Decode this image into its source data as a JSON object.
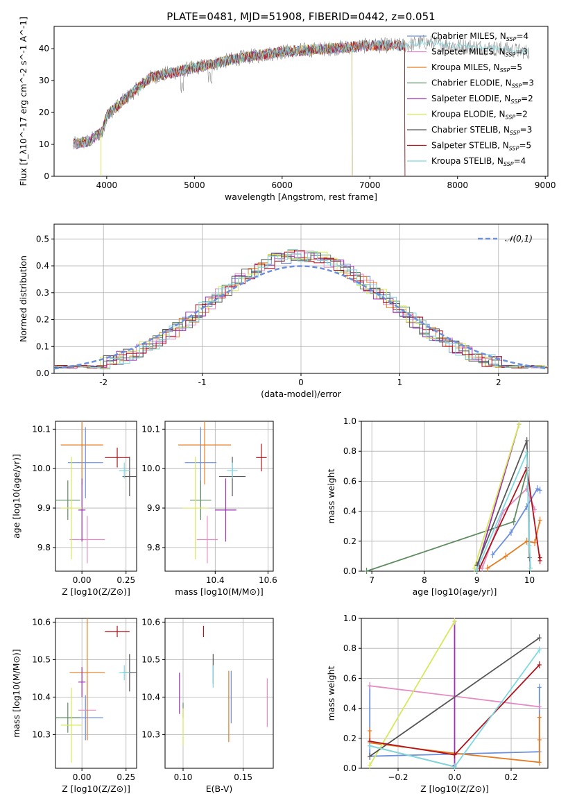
{
  "title": "PLATE=0481, MJD=51908, FIBERID=0442, z=0.051",
  "colors": {
    "Chabrier MILES": "#6b8fdd",
    "Salpeter MILES": "#e48bc3",
    "Kroupa MILES": "#e57b21",
    "Chabrier ELODIE": "#5e8c60",
    "Salpeter ELODIE": "#9c2fb2",
    "Kroupa ELODIE": "#d7e85a",
    "Chabrier STELIB": "#555555",
    "Salpeter STELIB": "#b0121b",
    "Kroupa STELIB": "#7fd8e0"
  },
  "chart_data": [
    {
      "id": "spectrum",
      "type": "line",
      "xlabel": "wavelength [Angstrom, rest frame]",
      "ylabel": "Flux [f_λ10^-17 erg cm^-2 s^-1 A^-1]",
      "xlim": [
        3400,
        9030
      ],
      "ylim": [
        0,
        47
      ],
      "xticks": [
        4000,
        5000,
        6000,
        7000,
        8000,
        9000
      ],
      "yticks": [
        0,
        10,
        20,
        30,
        40
      ],
      "grid": false,
      "legend": "upper right",
      "model_end": 7400,
      "continuum": [
        [
          3620,
          10
        ],
        [
          3800,
          11
        ],
        [
          3950,
          14
        ],
        [
          4000,
          19
        ],
        [
          4200,
          24
        ],
        [
          4500,
          31
        ],
        [
          5000,
          34
        ],
        [
          5500,
          37
        ],
        [
          6000,
          39
        ],
        [
          6500,
          40
        ],
        [
          7000,
          41
        ],
        [
          7400,
          41
        ],
        [
          7600,
          42
        ],
        [
          8000,
          41
        ],
        [
          8500,
          40
        ],
        [
          8800,
          39
        ]
      ],
      "series": [
        {
          "name": "Chabrier MILES, N_SSP=4",
          "label_main": "Chabrier MILES, N",
          "label_sub": "SSP",
          "label_tail": "=4"
        },
        {
          "name": "Salpeter MILES, N_SSP=3",
          "label_main": "Salpeter MILES, N",
          "label_sub": "SSP",
          "label_tail": "=3"
        },
        {
          "name": "Kroupa MILES, N_SSP=5",
          "label_main": "Kroupa MILES, N",
          "label_sub": "SSP",
          "label_tail": "=5"
        },
        {
          "name": "Chabrier ELODIE, N_SSP=3",
          "label_main": "Chabrier ELODIE, N",
          "label_sub": "SSP",
          "label_tail": "=3"
        },
        {
          "name": "Salpeter ELODIE, N_SSP=2",
          "label_main": "Salpeter ELODIE, N",
          "label_sub": "SSP",
          "label_tail": "=2"
        },
        {
          "name": "Kroupa ELODIE, N_SSP=2",
          "label_main": "Kroupa ELODIE, N",
          "label_sub": "SSP",
          "label_tail": "=2"
        },
        {
          "name": "Chabrier STELIB, N_SSP=3",
          "label_main": "Chabrier STELIB, N",
          "label_sub": "SSP",
          "label_tail": "=3"
        },
        {
          "name": "Salpeter STELIB, N_SSP=5",
          "label_main": "Salpeter STELIB, N",
          "label_sub": "SSP",
          "label_tail": "=5"
        },
        {
          "name": "Kroupa STELIB, N_SSP=4",
          "label_main": "Kroupa STELIB, N",
          "label_sub": "SSP",
          "label_tail": "=4"
        }
      ]
    },
    {
      "id": "residuals",
      "type": "line",
      "xlabel": "(data-model)/error",
      "ylabel": "Normed distribution",
      "xlim": [
        -2.5,
        2.5
      ],
      "ylim": [
        0,
        0.555
      ],
      "xticks": [
        -2,
        -1,
        0,
        1,
        2
      ],
      "yticks": [
        0.0,
        0.1,
        0.2,
        0.3,
        0.4,
        0.5
      ],
      "grid": true,
      "legend": "upper right",
      "gaussian_label": "𝒩(0,1)",
      "bin_width": 0.1
    },
    {
      "id": "age_vs_Z",
      "type": "scatter",
      "xlabel": "Z [log10(Z/Z⊙)]",
      "ylabel": "age [log10(age/yr)]",
      "xlim": [
        -0.15,
        0.31
      ],
      "ylim": [
        9.74,
        10.12
      ],
      "xticks": [
        0.0,
        0.25
      ],
      "xticklabels": [
        "0.00",
        "0.25"
      ],
      "yticks": [
        9.8,
        9.9,
        10.0,
        10.1
      ],
      "grid": true,
      "points": [
        {
          "model": "Chabrier MILES",
          "x": 0.02,
          "y": 10.015,
          "ex": 0.1,
          "ey": 0.09
        },
        {
          "model": "Salpeter MILES",
          "x": 0.03,
          "y": 9.82,
          "ex": 0.1,
          "ey": 0.06
        },
        {
          "model": "Kroupa MILES",
          "x": 0.0,
          "y": 10.06,
          "ex": 0.12,
          "ey": 0.1
        },
        {
          "model": "Chabrier ELODIE",
          "x": -0.08,
          "y": 9.92,
          "ex": 0.07,
          "ey": 0.05
        },
        {
          "model": "Salpeter ELODIE",
          "x": 0.0,
          "y": 9.895,
          "ex": 0.02,
          "ey": 0.08
        },
        {
          "model": "Kroupa ELODIE",
          "x": -0.06,
          "y": 9.9,
          "ex": 0.06,
          "ey": 0.13
        },
        {
          "model": "Chabrier STELIB",
          "x": 0.27,
          "y": 9.98,
          "ex": 0.04,
          "ey": 0.05
        },
        {
          "model": "Salpeter STELIB",
          "x": 0.2,
          "y": 10.028,
          "ex": 0.07,
          "ey": 0.025
        },
        {
          "model": "Kroupa STELIB",
          "x": 0.24,
          "y": 9.995,
          "ex": 0.03,
          "ey": 0.02
        }
      ]
    },
    {
      "id": "age_vs_mass",
      "type": "scatter",
      "xlabel": "mass [log10(M/M⊙)]",
      "ylabel": "",
      "xlim": [
        10.21,
        10.62
      ],
      "ylim": [
        9.74,
        10.12
      ],
      "xticks": [
        10.4,
        10.6
      ],
      "xticklabels": [
        "10.4",
        "10.6"
      ],
      "yticks": [
        9.8,
        9.9,
        10.0,
        10.1
      ],
      "grid": true,
      "points": [
        {
          "model": "Chabrier MILES",
          "x": 10.345,
          "y": 10.015,
          "ex": 0.06,
          "ey": 0.09
        },
        {
          "model": "Salpeter MILES",
          "x": 10.37,
          "y": 9.82,
          "ex": 0.04,
          "ey": 0.06
        },
        {
          "model": "Kroupa MILES",
          "x": 10.36,
          "y": 10.06,
          "ex": 0.1,
          "ey": 0.1
        },
        {
          "model": "Chabrier ELODIE",
          "x": 10.345,
          "y": 9.92,
          "ex": 0.04,
          "ey": 0.05
        },
        {
          "model": "Salpeter ELODIE",
          "x": 10.44,
          "y": 9.895,
          "ex": 0.04,
          "ey": 0.08
        },
        {
          "model": "Kroupa ELODIE",
          "x": 10.325,
          "y": 9.9,
          "ex": 0.05,
          "ey": 0.13
        },
        {
          "model": "Chabrier STELIB",
          "x": 10.465,
          "y": 9.98,
          "ex": 0.05,
          "ey": 0.05
        },
        {
          "model": "Salpeter STELIB",
          "x": 10.575,
          "y": 10.028,
          "ex": 0.02,
          "ey": 0.035
        },
        {
          "model": "Kroupa STELIB",
          "x": 10.465,
          "y": 9.995,
          "ex": 0.02,
          "ey": 0.02
        }
      ]
    },
    {
      "id": "mass_vs_Z",
      "type": "scatter",
      "xlabel": "Z [log10(Z/Z⊙)]",
      "ylabel": "mass [log10(M/M⊙)]",
      "xlim": [
        -0.15,
        0.31
      ],
      "ylim": [
        10.21,
        10.61
      ],
      "xticks": [
        0.0,
        0.25
      ],
      "xticklabels": [
        "0.00",
        "0.25"
      ],
      "yticks": [
        10.3,
        10.4,
        10.5,
        10.6
      ],
      "grid": true,
      "points": [
        {
          "model": "Chabrier MILES",
          "x": 0.02,
          "y": 10.345,
          "ex": 0.1,
          "ey": 0.06
        },
        {
          "model": "Salpeter MILES",
          "x": 0.03,
          "y": 10.365,
          "ex": 0.05,
          "ey": 0.08
        },
        {
          "model": "Kroupa MILES",
          "x": 0.03,
          "y": 10.465,
          "ex": 0.1,
          "ey": 0.18
        },
        {
          "model": "Chabrier ELODIE",
          "x": -0.08,
          "y": 10.345,
          "ex": 0.07,
          "ey": 0.04
        },
        {
          "model": "Salpeter ELODIE",
          "x": 0.0,
          "y": 10.44,
          "ex": 0.02,
          "ey": 0.04
        },
        {
          "model": "Kroupa ELODIE",
          "x": -0.06,
          "y": 10.325,
          "ex": 0.06,
          "ey": 0.1
        },
        {
          "model": "Chabrier STELIB",
          "x": 0.27,
          "y": 10.465,
          "ex": 0.04,
          "ey": 0.05
        },
        {
          "model": "Salpeter STELIB",
          "x": 0.2,
          "y": 10.575,
          "ex": 0.07,
          "ey": 0.015
        },
        {
          "model": "Kroupa STELIB",
          "x": 0.24,
          "y": 10.465,
          "ex": 0.03,
          "ey": 0.02
        }
      ]
    },
    {
      "id": "mass_vs_ebv",
      "type": "scatter",
      "xlabel": "E(B-V)",
      "ylabel": "",
      "xlim": [
        0.085,
        0.175
      ],
      "ylim": [
        10.21,
        10.61
      ],
      "xticks": [
        0.1,
        0.15
      ],
      "xticklabels": [
        "0.10",
        "0.15"
      ],
      "yticks": [
        10.3,
        10.4,
        10.5,
        10.6
      ],
      "grid": true,
      "points": [
        {
          "model": "Chabrier MILES",
          "x": 0.14,
          "y": 10.4,
          "ex": 0.0,
          "ey": 0.07
        },
        {
          "model": "Salpeter MILES",
          "x": 0.17,
          "y": 10.385,
          "ex": 0.0,
          "ey": 0.065
        },
        {
          "model": "Kroupa MILES",
          "x": 0.138,
          "y": 10.375,
          "ex": 0.0,
          "ey": 0.095
        },
        {
          "model": "Chabrier ELODIE",
          "x": 0.1,
          "y": 10.365,
          "ex": 0.0,
          "ey": 0.02
        },
        {
          "model": "Salpeter ELODIE",
          "x": 0.097,
          "y": 10.41,
          "ex": 0.0,
          "ey": 0.055
        },
        {
          "model": "Kroupa ELODIE",
          "x": 0.1,
          "y": 10.32,
          "ex": 0.0,
          "ey": 0.05
        },
        {
          "model": "Chabrier STELIB",
          "x": 0.125,
          "y": 10.475,
          "ex": 0.0,
          "ey": 0.04
        },
        {
          "model": "Salpeter STELIB",
          "x": 0.117,
          "y": 10.575,
          "ex": 0.0,
          "ey": 0.015
        },
        {
          "model": "Kroupa STELIB",
          "x": 0.125,
          "y": 10.455,
          "ex": 0.0,
          "ey": 0.03
        }
      ]
    },
    {
      "id": "weight_vs_age",
      "type": "line",
      "xlabel": "age [log10(age/yr)]",
      "ylabel": "mass weight",
      "xlim": [
        6.8,
        10.35
      ],
      "ylim": [
        0,
        1.0
      ],
      "xticks": [
        7,
        8,
        9,
        10
      ],
      "yticks": [
        0.0,
        0.2,
        0.4,
        0.6,
        0.8,
        1.0
      ],
      "grid": true,
      "series": [
        {
          "model": "Chabrier MILES",
          "x": [
            9.3,
            9.65,
            9.95,
            10.15,
            10.2
          ],
          "y": [
            0.11,
            0.26,
            0.43,
            0.55,
            0.54
          ]
        },
        {
          "model": "Salpeter MILES",
          "x": [
            9.1,
            9.5,
            9.95,
            10.1
          ],
          "y": [
            0.02,
            0.4,
            0.55,
            0.41
          ]
        },
        {
          "model": "Kroupa MILES",
          "x": [
            9.2,
            9.55,
            9.95,
            10.1,
            10.2
          ],
          "y": [
            0.02,
            0.1,
            0.2,
            0.19,
            0.34
          ]
        },
        {
          "model": "Chabrier ELODIE",
          "x": [
            6.9,
            9.7,
            9.95
          ],
          "y": [
            0.0,
            0.33,
            0.67
          ]
        },
        {
          "model": "Salpeter ELODIE",
          "x": [
            9.0,
            9.8
          ],
          "y": [
            0.02,
            0.98
          ]
        },
        {
          "model": "Kroupa ELODIE",
          "x": [
            8.95,
            9.8
          ],
          "y": [
            0.02,
            0.98
          ]
        },
        {
          "model": "Chabrier STELIB",
          "x": [
            9.0,
            9.95,
            10.0
          ],
          "y": [
            0.04,
            0.87,
            0.09
          ]
        },
        {
          "model": "Salpeter STELIB",
          "x": [
            9.05,
            9.95,
            10.2,
            10.2
          ],
          "y": [
            0.02,
            0.69,
            0.07,
            0.09
          ]
        },
        {
          "model": "Kroupa STELIB",
          "x": [
            9.0,
            9.95,
            10.0,
            10.02
          ],
          "y": [
            0.01,
            0.79,
            0.17,
            0.02
          ]
        }
      ]
    },
    {
      "id": "weight_vs_Z",
      "type": "line",
      "xlabel": "Z [log10(Z/Z⊙)]",
      "ylabel": "mass weight",
      "xlim": [
        -0.33,
        0.33
      ],
      "ylim": [
        0,
        1.0
      ],
      "xticks": [
        -0.2,
        0.0,
        0.2
      ],
      "xticklabels": [
        "−0.2",
        "0.0",
        "0.2"
      ],
      "yticks": [
        0.0,
        0.2,
        0.4,
        0.6,
        0.8,
        1.0
      ],
      "grid": true,
      "series": [
        {
          "model": "Chabrier MILES",
          "x": [
            -0.3,
            -0.3,
            0.3,
            0.3
          ],
          "y": [
            0.55,
            0.08,
            0.11,
            0.54
          ]
        },
        {
          "model": "Salpeter MILES",
          "x": [
            -0.3,
            0.3
          ],
          "y": [
            0.55,
            0.41
          ]
        },
        {
          "model": "Kroupa MILES",
          "x": [
            -0.3,
            -0.3,
            0.0,
            0.3,
            0.3,
            0.3
          ],
          "y": [
            0.25,
            0.17,
            0.1,
            0.04,
            0.19,
            0.34
          ]
        },
        {
          "model": "Chabrier ELODIE",
          "x": [
            -0.3,
            0.0
          ],
          "y": [
            0.15,
            0.01
          ]
        },
        {
          "model": "Salpeter ELODIE",
          "x": [
            0.0,
            0.0
          ],
          "y": [
            0.02,
            0.98
          ]
        },
        {
          "model": "Kroupa ELODIE",
          "x": [
            -0.3,
            0.0
          ],
          "y": [
            0.02,
            0.98
          ]
        },
        {
          "model": "Chabrier STELIB",
          "x": [
            -0.3,
            0.3
          ],
          "y": [
            0.08,
            0.87
          ]
        },
        {
          "model": "Salpeter STELIB",
          "x": [
            -0.3,
            0.0,
            0.3
          ],
          "y": [
            0.18,
            0.09,
            0.69
          ]
        },
        {
          "model": "Kroupa STELIB",
          "x": [
            -0.3,
            0.0,
            0.3
          ],
          "y": [
            0.15,
            0.01,
            0.79
          ]
        }
      ]
    }
  ]
}
